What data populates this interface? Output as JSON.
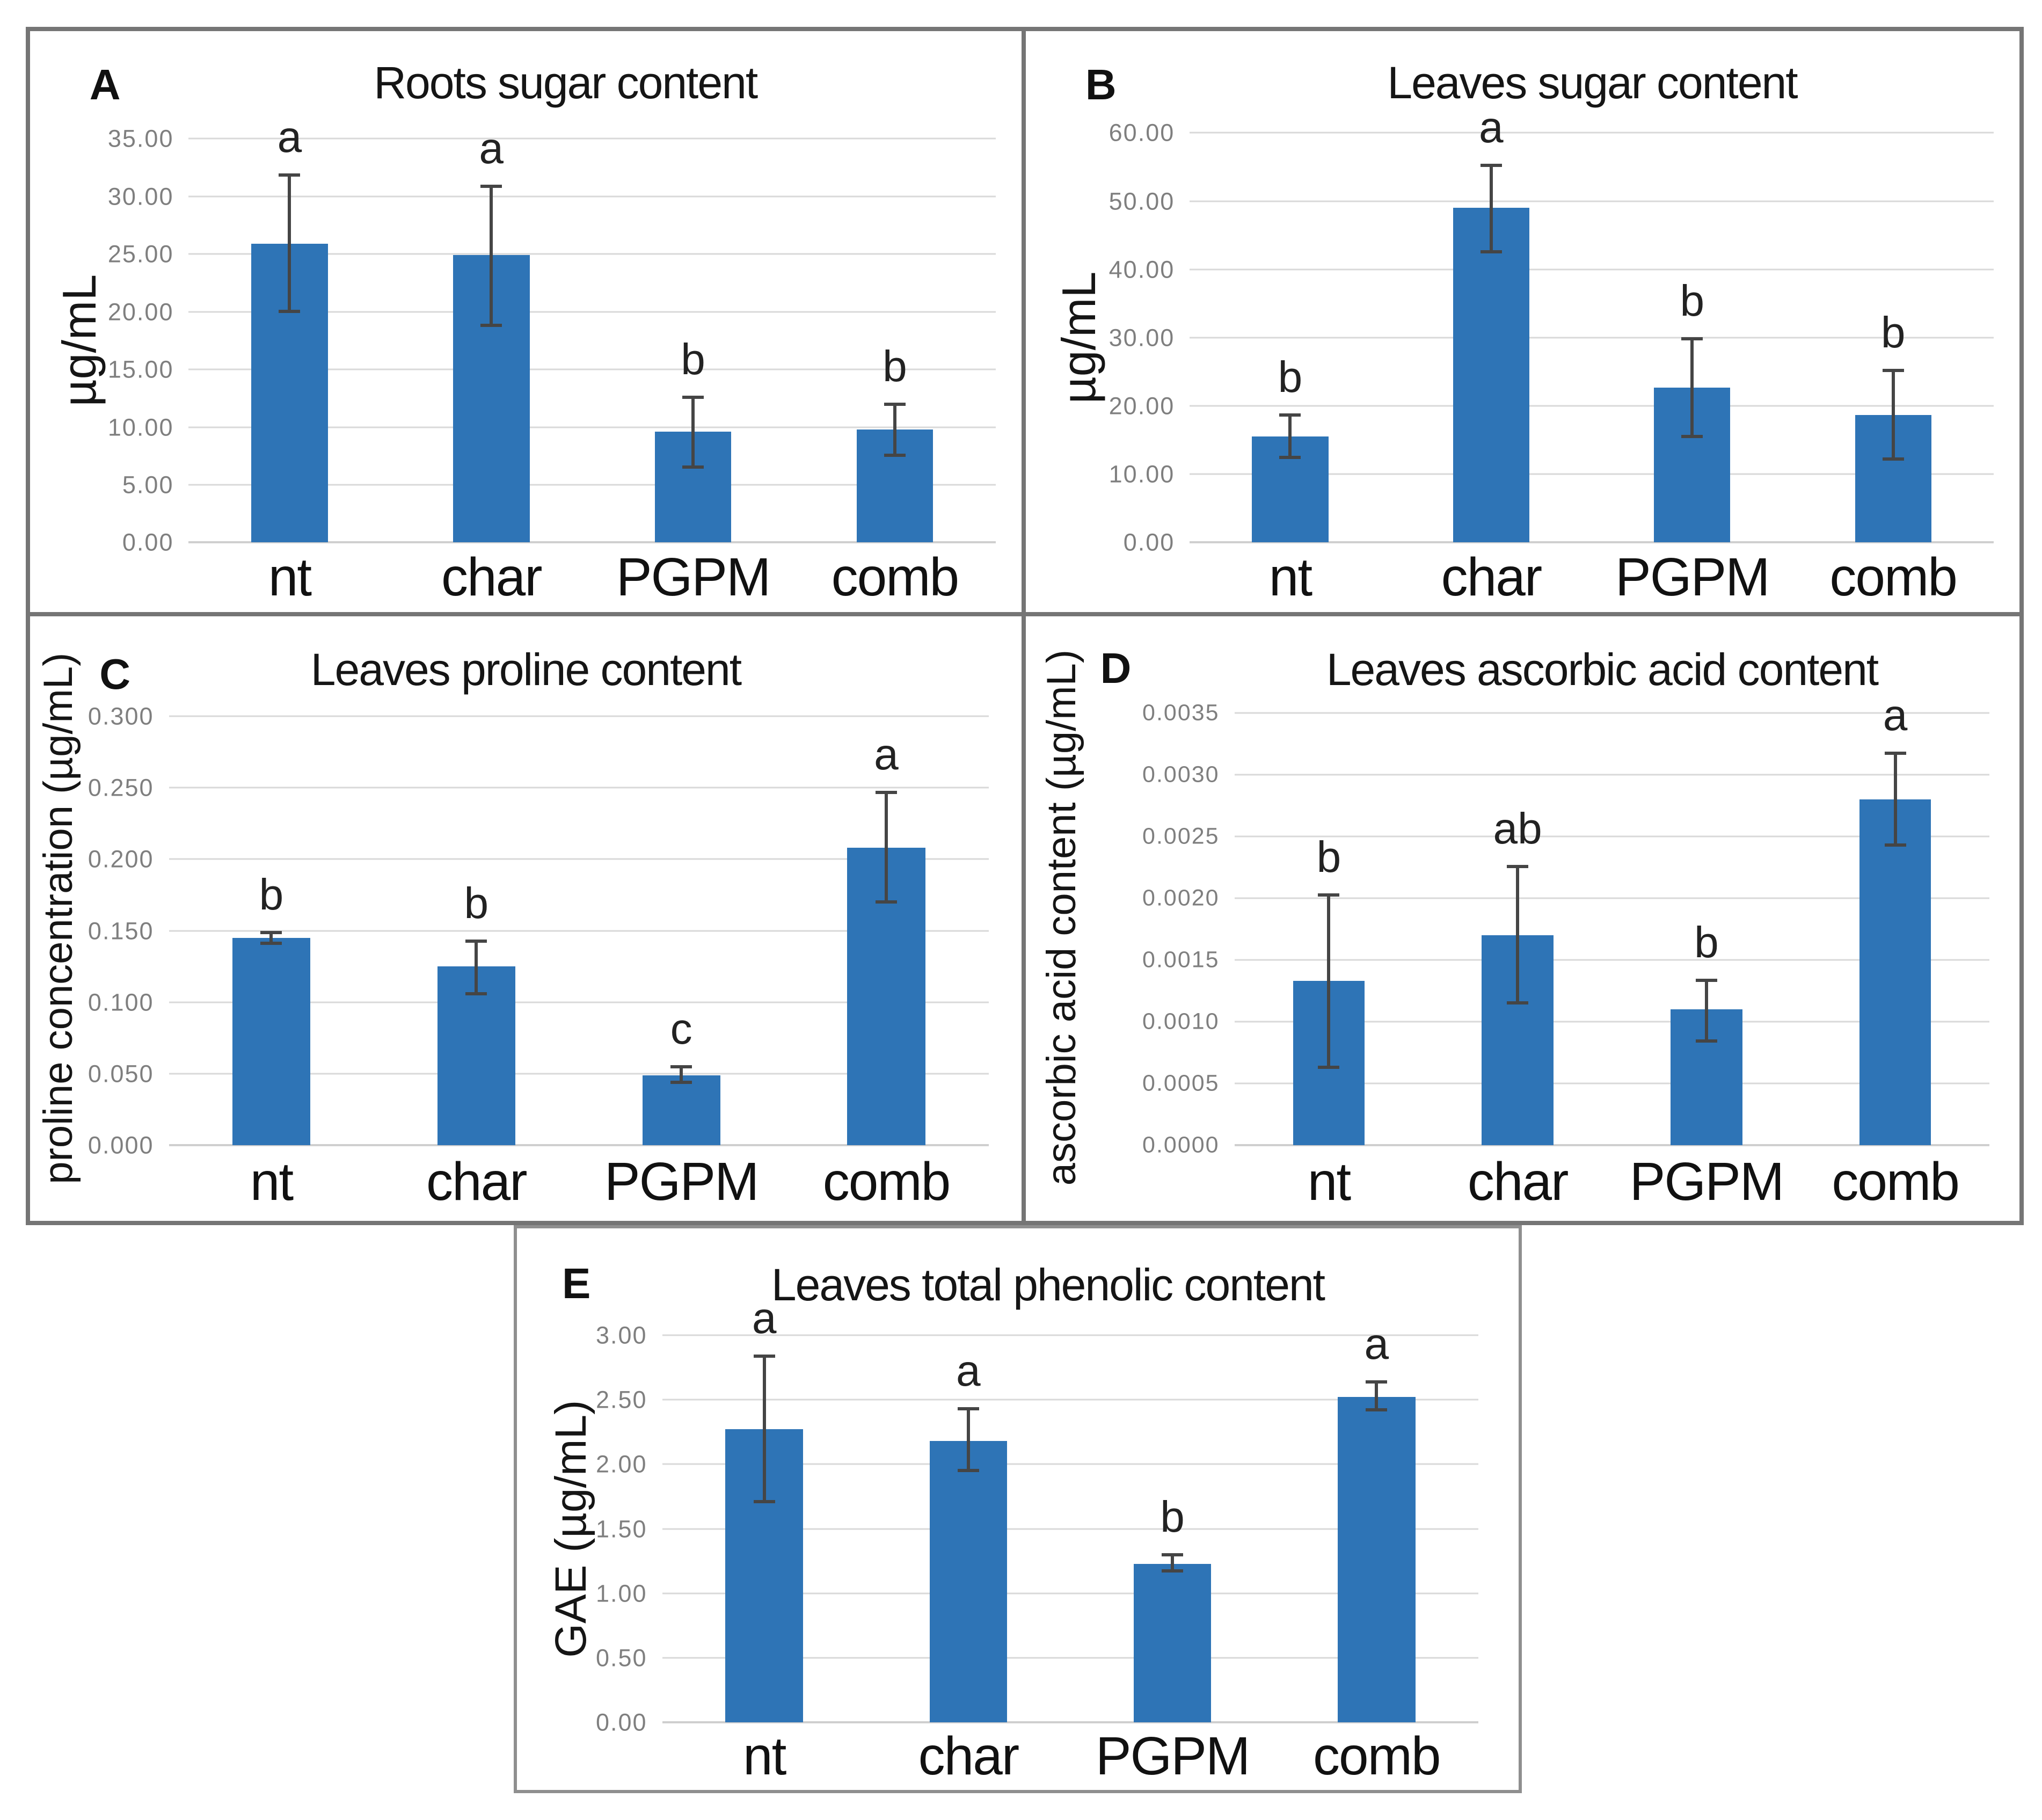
{
  "style": {
    "bar_color": "#2E74B6",
    "error_color": "#454545",
    "grid_color": "#D9D9D9",
    "tick_color": "#7F7F7F",
    "border_color": "#757575"
  },
  "chart_data": [
    {
      "type": "bar",
      "panel_letter": "A",
      "title": "Roots sugar content",
      "ylabel": "µg/mL",
      "categories": [
        "nt",
        "char",
        "PGPM",
        "comb"
      ],
      "values": [
        25.9,
        24.9,
        9.6,
        9.8
      ],
      "error_low": [
        19.9,
        18.7,
        6.4,
        7.4
      ],
      "error_high": [
        32.0,
        31.0,
        12.7,
        12.1
      ],
      "sig_letters": [
        "a",
        "a",
        "b",
        "b"
      ],
      "y_axis_max": 35,
      "y_tick_values": [
        0,
        5,
        10,
        15,
        20,
        25,
        30,
        35
      ],
      "y_tick_labels": [
        "0.00",
        "5.00",
        "10.00",
        "15.00",
        "20.00",
        "25.00",
        "30.00",
        "35.00"
      ],
      "grid": true,
      "legend": false
    },
    {
      "type": "bar",
      "panel_letter": "B",
      "title": "Leaves sugar content",
      "ylabel": "µg/mL",
      "categories": [
        "nt",
        "char",
        "PGPM",
        "comb"
      ],
      "values": [
        15.5,
        49.0,
        22.7,
        18.7
      ],
      "error_low": [
        12.2,
        42.3,
        15.3,
        12.0
      ],
      "error_high": [
        18.9,
        55.5,
        30.1,
        25.4
      ],
      "sig_letters": [
        "b",
        "a",
        "b",
        "b"
      ],
      "y_axis_max": 60,
      "y_tick_values": [
        0,
        10,
        20,
        30,
        40,
        50,
        60
      ],
      "y_tick_labels": [
        "0.00",
        "10.00",
        "20.00",
        "30.00",
        "40.00",
        "50.00",
        "60.00"
      ],
      "grid": true,
      "legend": false
    },
    {
      "type": "bar",
      "panel_letter": "C",
      "title": "Leaves proline content",
      "ylabel": "proline concentration (µg/mL)",
      "categories": [
        "nt",
        "char",
        "PGPM",
        "comb"
      ],
      "values": [
        0.145,
        0.125,
        0.049,
        0.208
      ],
      "error_low": [
        0.14,
        0.105,
        0.043,
        0.169
      ],
      "error_high": [
        0.15,
        0.144,
        0.056,
        0.248
      ],
      "sig_letters": [
        "b",
        "b",
        "c",
        "a"
      ],
      "y_axis_max": 0.3,
      "y_tick_values": [
        0,
        0.05,
        0.1,
        0.15,
        0.2,
        0.25,
        0.3
      ],
      "y_tick_labels": [
        "0.000",
        "0.050",
        "0.100",
        "0.150",
        "0.200",
        "0.250",
        "0.300"
      ],
      "grid": true,
      "legend": false
    },
    {
      "type": "bar",
      "panel_letter": "D",
      "title": "Leaves ascorbic acid content",
      "ylabel": "ascorbic acid content (µg/mL)",
      "categories": [
        "nt",
        "char",
        "PGPM",
        "comb"
      ],
      "values": [
        0.00133,
        0.0017,
        0.0011,
        0.0028
      ],
      "error_low": [
        0.00062,
        0.00114,
        0.00083,
        0.00242
      ],
      "error_high": [
        0.00204,
        0.00227,
        0.00135,
        0.00319
      ],
      "sig_letters": [
        "b",
        "ab",
        "b",
        "a"
      ],
      "y_axis_max": 0.0035,
      "y_tick_values": [
        0,
        0.0005,
        0.001,
        0.0015,
        0.002,
        0.0025,
        0.003,
        0.0035
      ],
      "y_tick_labels": [
        "0.0000",
        "0.0005",
        "0.0010",
        "0.0015",
        "0.0020",
        "0.0025",
        "0.0030",
        "0.0035"
      ],
      "grid": true,
      "legend": false
    },
    {
      "type": "bar",
      "panel_letter": "E",
      "title": "Leaves total phenolic content",
      "ylabel": "GAE (µg/mL)",
      "categories": [
        "nt",
        "char",
        "PGPM",
        "comb"
      ],
      "values": [
        2.27,
        2.18,
        1.23,
        2.52
      ],
      "error_low": [
        1.7,
        1.94,
        1.16,
        2.41
      ],
      "error_high": [
        2.85,
        2.44,
        1.31,
        2.65
      ],
      "sig_letters": [
        "a",
        "a",
        "b",
        "a"
      ],
      "y_axis_max": 3,
      "y_tick_values": [
        0,
        0.5,
        1,
        1.5,
        2,
        2.5,
        3
      ],
      "y_tick_labels": [
        "0.00",
        "0.50",
        "1.00",
        "1.50",
        "2.00",
        "2.50",
        "3.00"
      ],
      "grid": true,
      "legend": false
    }
  ]
}
